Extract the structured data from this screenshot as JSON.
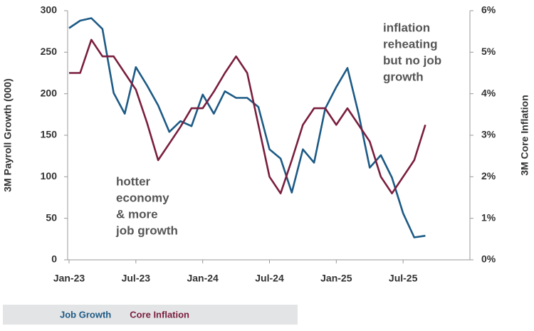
{
  "chart_data": {
    "type": "line",
    "categories": [
      "Jan-23",
      null,
      null,
      null,
      null,
      null,
      "Jul-23",
      null,
      null,
      null,
      null,
      null,
      "Jan-24",
      null,
      null,
      null,
      null,
      null,
      "Jul-24",
      null,
      null,
      null,
      null,
      null,
      "Jan-25",
      null,
      null,
      null,
      null,
      null,
      "Jul-25",
      null,
      null,
      null,
      null,
      null,
      null
    ],
    "ylabel": "3M Payroll Growth (000)",
    "y2label": "3M Core Inflation",
    "ylim": [
      0,
      300
    ],
    "yticks": [
      0,
      50,
      100,
      150,
      200,
      250,
      300
    ],
    "y2lim": [
      0,
      6
    ],
    "y2ticks": [
      {
        "value": 0,
        "label": "0%"
      },
      {
        "value": 1,
        "label": "1%"
      },
      {
        "value": 2,
        "label": "2%"
      },
      {
        "value": 3,
        "label": "3%"
      },
      {
        "value": 4,
        "label": "4%"
      },
      {
        "value": 5,
        "label": "5%"
      },
      {
        "value": 6,
        "label": "6%"
      }
    ],
    "series": [
      {
        "name": "Job Growth",
        "color": "#1d5a85",
        "values": [
          279,
          288,
          291,
          278,
          201,
          176,
          232,
          210,
          186,
          154,
          167,
          161,
          199,
          176,
          203,
          195,
          195,
          184,
          133,
          122,
          81,
          133,
          117,
          182,
          208,
          231,
          176,
          111,
          126,
          99,
          56,
          27,
          29,
          null,
          null,
          null,
          null
        ]
      },
      {
        "name": "Core Inflation",
        "color": "#7a1e3e",
        "axis": "y2",
        "values": [
          4.5,
          4.5,
          5.3,
          4.9,
          4.9,
          4.5,
          4.1,
          3.3,
          2.4,
          2.8,
          3.2,
          3.65,
          3.65,
          4.05,
          4.5,
          4.9,
          4.5,
          3.25,
          2.0,
          1.6,
          2.4,
          3.25,
          3.65,
          3.65,
          3.25,
          3.65,
          3.25,
          2.85,
          2.0,
          1.6,
          2.0,
          2.4,
          3.25,
          null,
          null,
          null,
          null
        ]
      }
    ],
    "annotations": [
      [
        "inflation",
        "reheating",
        "but no job",
        "growth"
      ],
      [
        "hotter",
        "economy",
        "& more",
        "job growth"
      ]
    ]
  }
}
